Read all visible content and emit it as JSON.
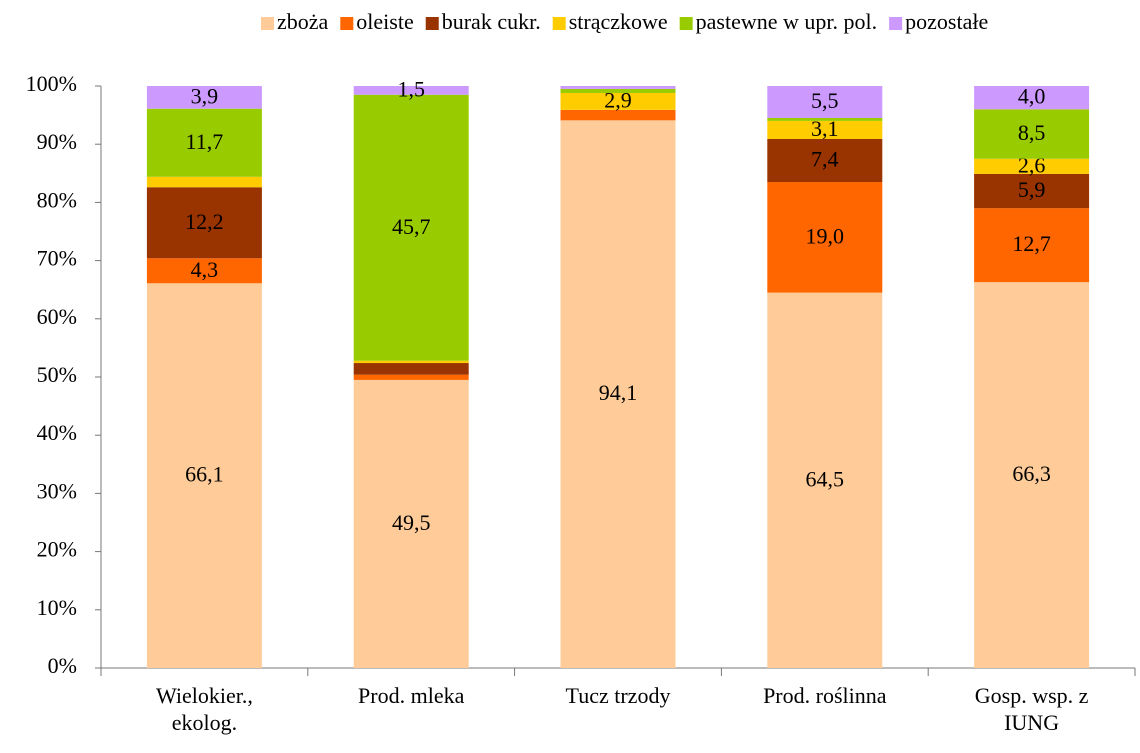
{
  "chart_data": {
    "type": "stacked_bar",
    "categories": [
      [
        "Wielokier.,",
        "ekolog."
      ],
      [
        "Prod. mleka"
      ],
      [
        "Tucz trzody"
      ],
      [
        "Prod. roślinna"
      ],
      [
        "Gosp. wsp. z",
        "IUNG"
      ]
    ],
    "series": [
      {
        "name": "zboża",
        "color": "#ffcc99",
        "values": [
          66.1,
          49.5,
          94.1,
          64.5,
          66.3
        ],
        "value_labels": [
          "66,1",
          "49,5",
          "94,1",
          "64,5",
          "66,3"
        ]
      },
      {
        "name": "oleiste",
        "color": "#ff6600",
        "values": [
          4.3,
          0.9,
          1.8,
          19.0,
          12.7
        ],
        "value_labels": [
          "4,3",
          null,
          null,
          "19,0",
          "12,7"
        ]
      },
      {
        "name": "burak cukr.",
        "color": "#993300",
        "values": [
          12.2,
          2.0,
          0,
          7.4,
          5.9
        ],
        "value_labels": [
          "12,2",
          null,
          null,
          "7,4",
          "5,9"
        ]
      },
      {
        "name": "strączkowe",
        "color": "#ffcc00",
        "values": [
          1.8,
          0.4,
          2.9,
          3.1,
          2.6
        ],
        "value_labels": [
          null,
          null,
          "2,9",
          "3,1",
          "2,6"
        ]
      },
      {
        "name": "pastewne w upr. pol.",
        "color": "#99cc00",
        "values": [
          11.7,
          45.7,
          0.7,
          0.5,
          8.5
        ],
        "value_labels": [
          "11,7",
          "45,7",
          null,
          null,
          "8,5"
        ]
      },
      {
        "name": "pozostałe",
        "color": "#cc99ff",
        "values": [
          3.9,
          1.5,
          0.5,
          5.5,
          4.0
        ],
        "value_labels": [
          "3,9",
          "1,5",
          null,
          "5,5",
          "4,0"
        ]
      }
    ],
    "ylim": [
      0,
      100
    ],
    "yticks": [
      {
        "value": 0,
        "label": "0%"
      },
      {
        "value": 10,
        "label": "10%"
      },
      {
        "value": 20,
        "label": "20%"
      },
      {
        "value": 30,
        "label": "30%"
      },
      {
        "value": 40,
        "label": "40%"
      },
      {
        "value": 50,
        "label": "50%"
      },
      {
        "value": 60,
        "label": "60%"
      },
      {
        "value": 70,
        "label": "70%"
      },
      {
        "value": 80,
        "label": "80%"
      },
      {
        "value": 90,
        "label": "90%"
      },
      {
        "value": 100,
        "label": "100%"
      }
    ],
    "grid": false,
    "legend": "top"
  }
}
